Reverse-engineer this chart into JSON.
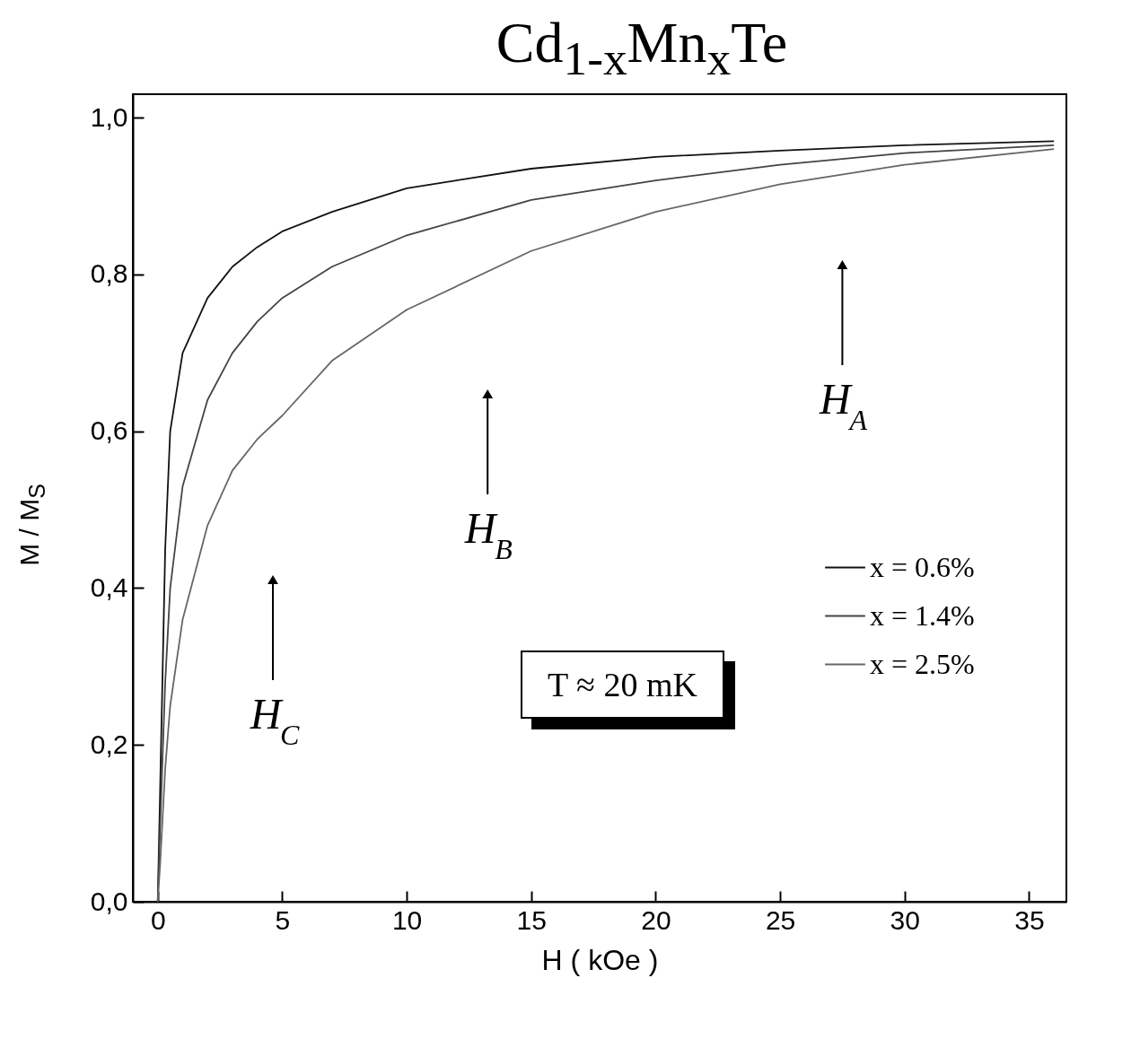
{
  "chart_data": {
    "type": "line",
    "title": "Cd$_{1-x}$Mn$_{x}$Te",
    "xlabel": "H ( kOe )",
    "ylabel": "M / M$_{S}$",
    "xlim": [
      -1,
      36.5
    ],
    "xticks": [
      0,
      5,
      10,
      15,
      20,
      25,
      30,
      35
    ],
    "ylim": [
      0,
      1.03
    ],
    "yticks": [
      {
        "value": 0,
        "label": "0,0"
      },
      {
        "value": 0.2,
        "label": "0,2"
      },
      {
        "value": 0.4,
        "label": "0,4"
      },
      {
        "value": 0.6,
        "label": "0,6"
      },
      {
        "value": 0.8,
        "label": "0,8"
      },
      {
        "value": 1,
        "label": "1,0"
      }
    ],
    "grid": false,
    "legend": "right",
    "marker": "none",
    "line_style": "solid",
    "x": [
      0,
      0.1,
      0.3,
      0.5,
      1,
      2,
      3,
      4,
      5,
      7,
      10,
      15,
      20,
      25,
      30,
      36
    ],
    "series": [
      {
        "name": "x = 0.6%",
        "color": "#111111",
        "values": [
          0,
          0.15,
          0.45,
          0.6,
          0.7,
          0.77,
          0.81,
          0.835,
          0.855,
          0.88,
          0.91,
          0.935,
          0.95,
          0.958,
          0.965,
          0.97
        ]
      },
      {
        "name": "x = 1.4%",
        "color": "#444444",
        "values": [
          0,
          0.1,
          0.28,
          0.4,
          0.53,
          0.64,
          0.7,
          0.74,
          0.77,
          0.81,
          0.85,
          0.895,
          0.92,
          0.94,
          0.955,
          0.965
        ]
      },
      {
        "name": "x = 2.5%",
        "color": "#666666",
        "values": [
          0,
          0.05,
          0.17,
          0.25,
          0.36,
          0.48,
          0.55,
          0.59,
          0.62,
          0.69,
          0.755,
          0.83,
          0.88,
          0.915,
          0.94,
          0.96
        ]
      }
    ],
    "annotations": [
      "H$_{A}$",
      "H$_{B}$",
      "H$_{C}$",
      "T ≈ 20 mK"
    ]
  }
}
